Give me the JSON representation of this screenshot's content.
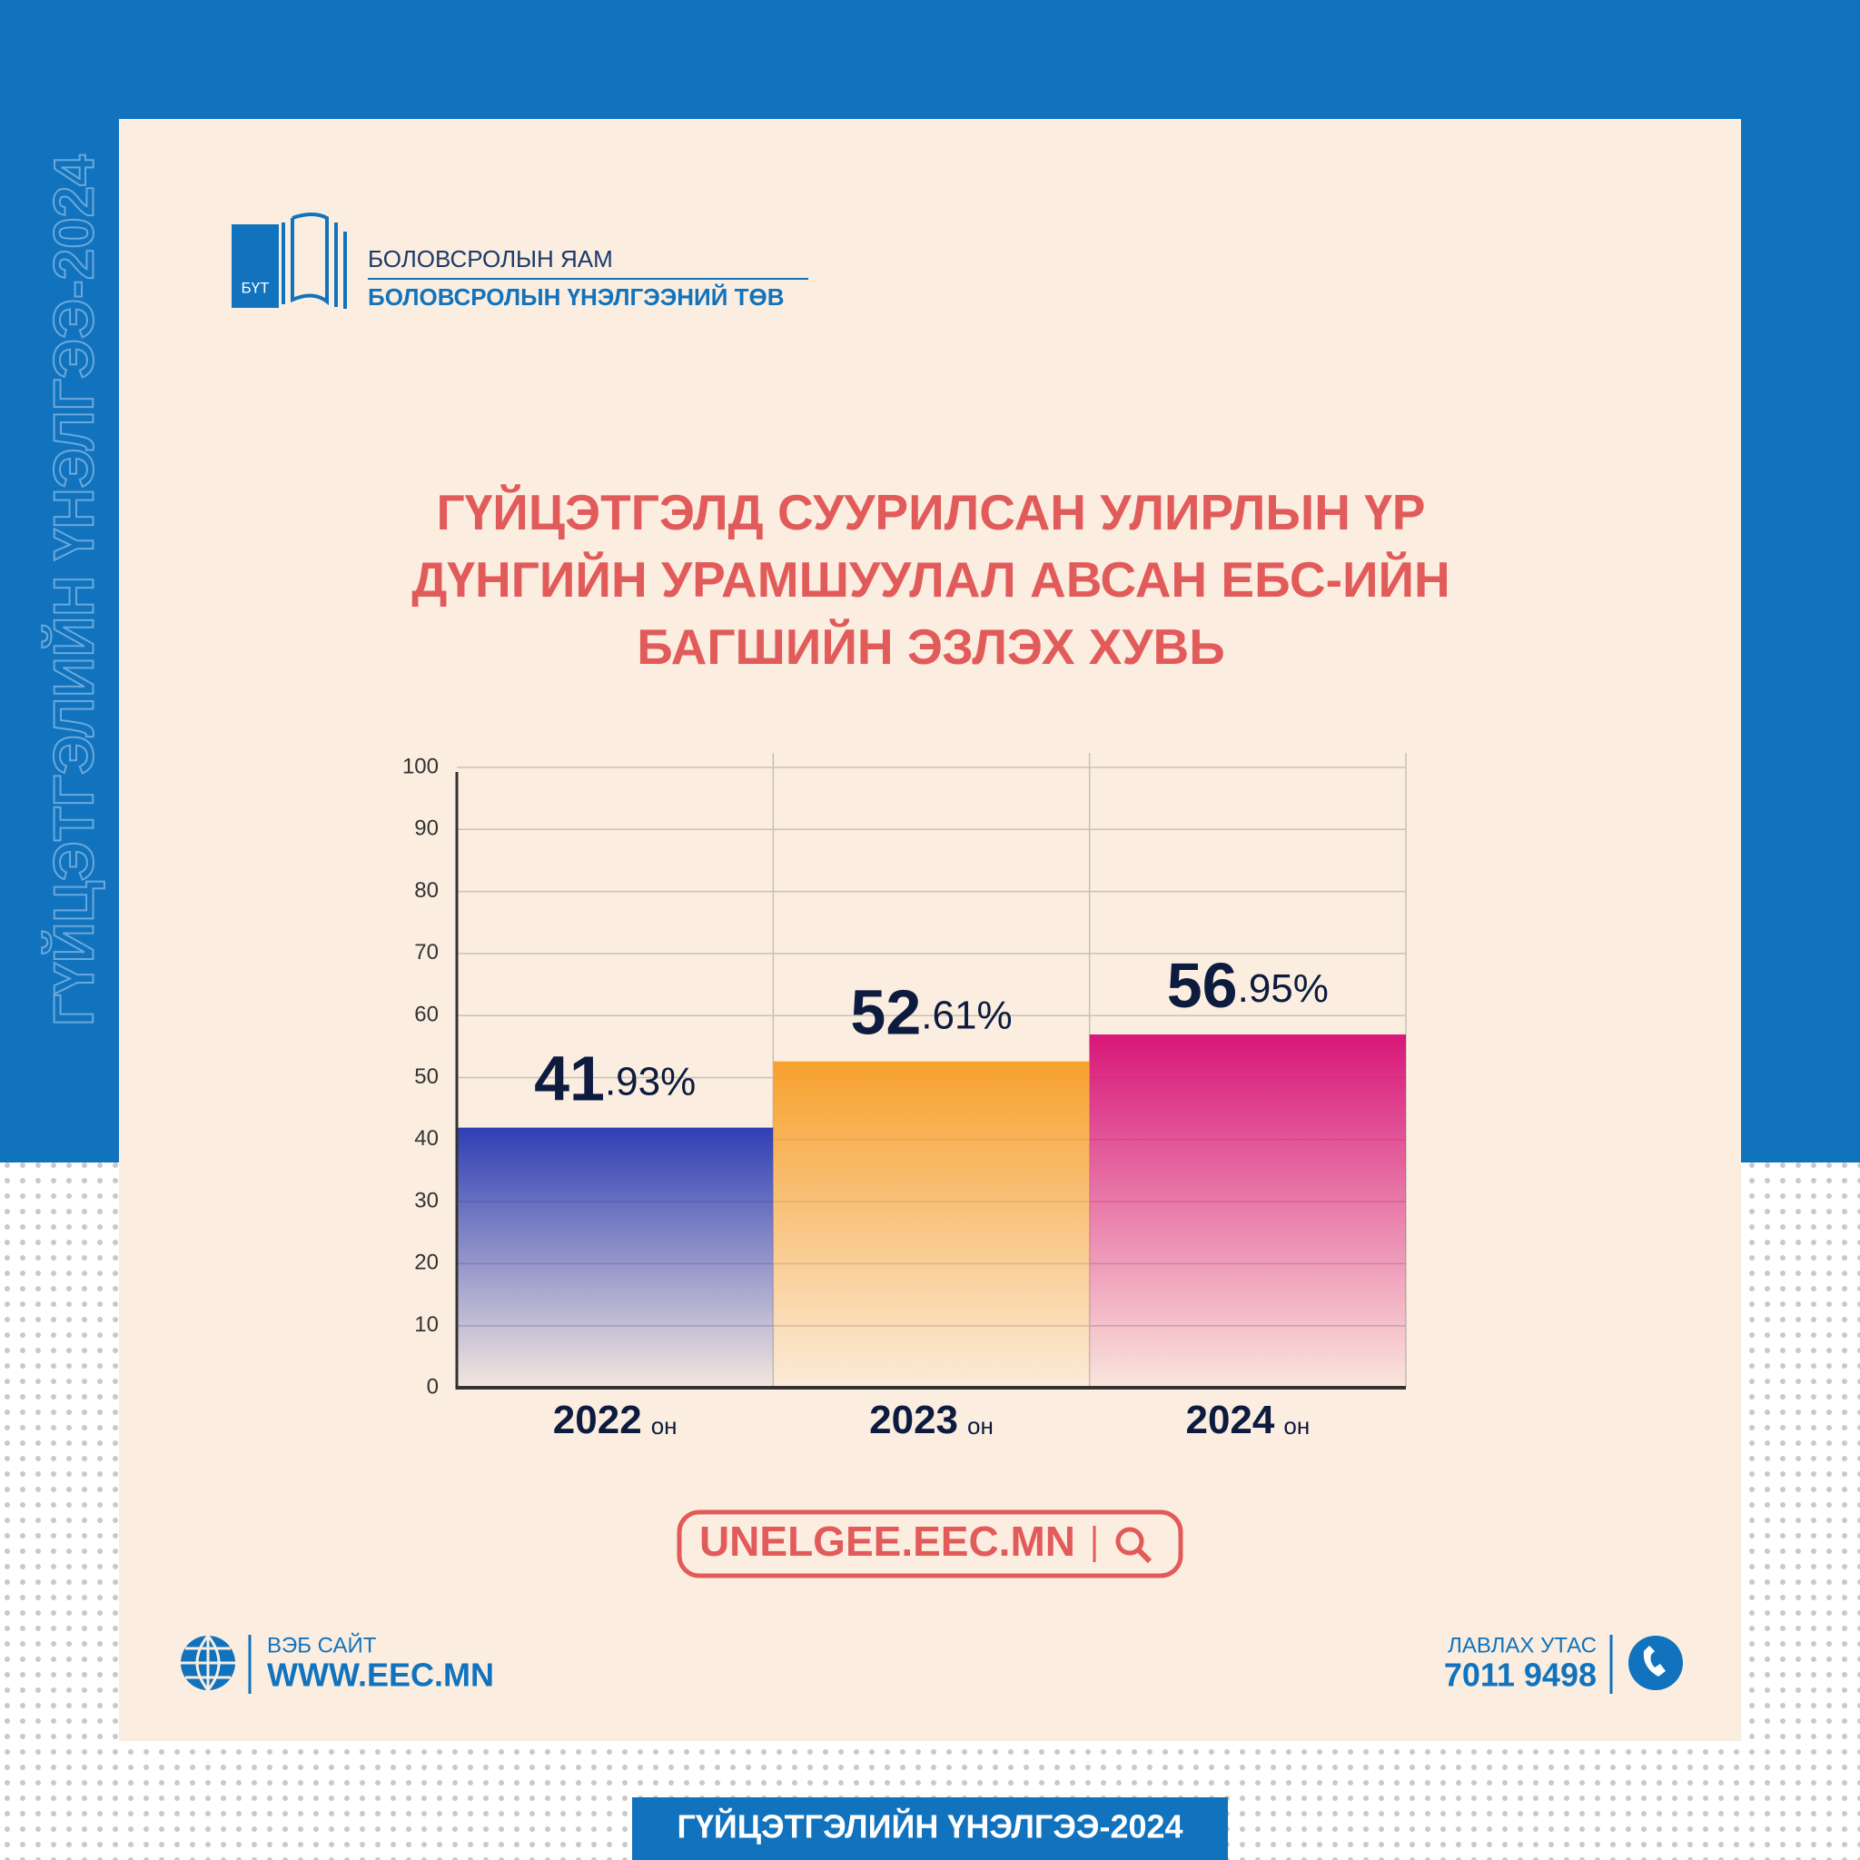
{
  "brand": {
    "badge": "БҮТ",
    "ministry": "БОЛОВСРОЛЫН ЯАМ",
    "center": "БОЛОВСРОЛЫН ҮНЭЛГЭЭНИЙ ТӨВ"
  },
  "campaign": "ГҮЙЦЭТГЭЛИЙН ҮНЭЛГЭЭ-2024",
  "chart_data": {
    "type": "bar",
    "title": "ГҮЙЦЭТГЭЛД СУУРИЛСАН УЛИРЛЫН ҮР ДҮНГИЙН УРАМШУУЛАЛ АВСАН ЕБС-ИЙН БАГШИЙН ЭЗЛЭХ ХУВЬ",
    "categories": [
      "2022",
      "2023",
      "2024"
    ],
    "category_suffix": "он",
    "values": [
      41.93,
      52.61,
      56.95
    ],
    "value_labels": [
      "41.93%",
      "52.61%",
      "56.95%"
    ],
    "colors": [
      "#2f3fb4",
      "#f7a12e",
      "#d8177a"
    ],
    "ylim": [
      0,
      100
    ],
    "yticks": [
      0,
      10,
      20,
      30,
      40,
      50,
      60,
      70,
      80,
      90,
      100
    ],
    "grid": true
  },
  "search": "UNELGEE.EEC.MN",
  "footer": {
    "web_label": "ВЭБ САЙТ",
    "web": "WWW.EEC.MN",
    "phone_label": "ЛАВЛАХ УТАС",
    "phone": "7011 9498"
  }
}
